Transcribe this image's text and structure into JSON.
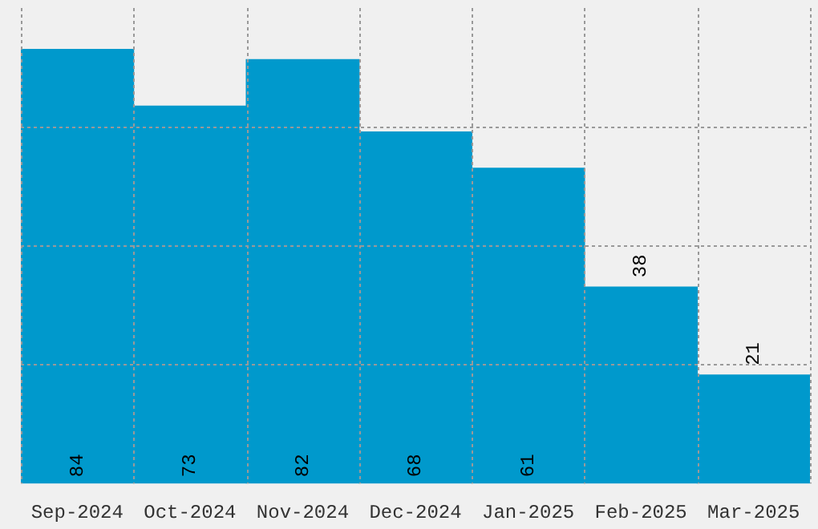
{
  "chart_data": {
    "type": "bar",
    "categories": [
      "Sep-2024",
      "Oct-2024",
      "Nov-2024",
      "Dec-2024",
      "Jan-2025",
      "Feb-2025",
      "Mar-2025"
    ],
    "values": [
      84,
      73,
      82,
      68,
      61,
      38,
      21
    ],
    "color": "#0099cc",
    "ylim": [
      0,
      92
    ],
    "yticks": [
      {
        "value": 23,
        "label": null
      },
      {
        "value": 46,
        "label": null
      },
      {
        "value": 69,
        "label": null
      }
    ],
    "grid": true,
    "tick_labels": "x",
    "data_labels": true
  }
}
